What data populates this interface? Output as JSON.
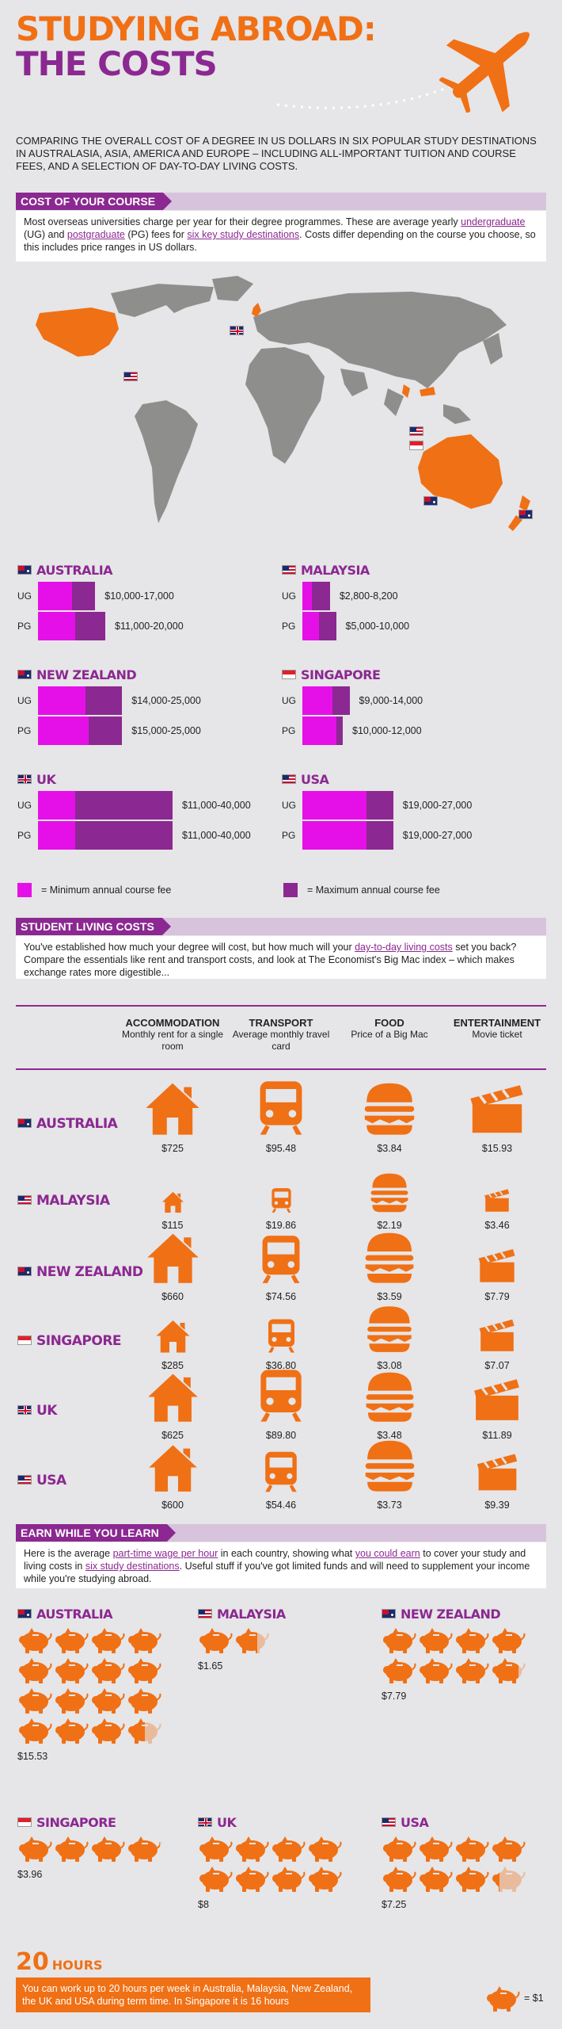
{
  "header": {
    "title_line1": "STUDYING ABROAD:",
    "title_line2": "THE COSTS",
    "intro": "Comparing the overall cost of a degree in US dollars in six popular study destinations in Australasia, Asia, America and Europe – including all-important tuition and course fees, and a selection of day-to-day living costs."
  },
  "course": {
    "heading": "COST OF YOUR COURSE",
    "body_1": "Most overseas universities charge per year for their degree programmes. These are average yearly ",
    "body_ug": "undergraduate",
    "body_2": " (UG) and ",
    "body_pg": "postgraduate",
    "body_3": " (PG) fees for ",
    "body_six": "six key study destinations",
    "body_4": ". Costs differ depending on the course you choose, so this includes price ranges in US dollars.",
    "ug_label": "UG",
    "pg_label": "PG",
    "countries": [
      {
        "name": "AUSTRALIA",
        "ug": "$10,000-17,000",
        "pg": "$11,000-20,000",
        "ug_min": 10000,
        "ug_max": 17000,
        "pg_min": 11000,
        "pg_max": 20000
      },
      {
        "name": "MALAYSIA",
        "ug": "$2,800-8,200",
        "pg": "$5,000-10,000",
        "ug_min": 2800,
        "ug_max": 8200,
        "pg_min": 5000,
        "pg_max": 10000
      },
      {
        "name": "NEW ZEALAND",
        "ug": "$14,000-25,000",
        "pg": "$15,000-25,000",
        "ug_min": 14000,
        "ug_max": 25000,
        "pg_min": 15000,
        "pg_max": 25000
      },
      {
        "name": "SINGAPORE",
        "ug": "$9,000-14,000",
        "pg": "$10,000-12,000",
        "ug_min": 9000,
        "ug_max": 14000,
        "pg_min": 10000,
        "pg_max": 12000
      },
      {
        "name": "UK",
        "ug": "$11,000-40,000",
        "pg": "$11,000-40,000",
        "ug_min": 11000,
        "ug_max": 40000,
        "pg_min": 11000,
        "pg_max": 40000
      },
      {
        "name": "USA",
        "ug": "$19,000-27,000",
        "pg": "$19,000-27,000",
        "ug_min": 19000,
        "ug_max": 27000,
        "pg_min": 19000,
        "pg_max": 27000
      }
    ],
    "legend_min": "= Minimum annual course fee",
    "legend_max": "= Maximum annual course fee"
  },
  "living": {
    "heading": "STUDENT LIVING COSTS",
    "body_1": "You've established how much your degree will cost, but how much will your ",
    "body_hl": "day-to-day living costs",
    "body_2": " set you back? Compare the essentials like rent and transport costs, and look at The Economist's Big Mac index – which makes exchange rates more digestible...",
    "columns": [
      {
        "title": "ACCOMMODATION",
        "sub": "Monthly rent for a single room"
      },
      {
        "title": "TRANSPORT",
        "sub": "Average monthly travel card"
      },
      {
        "title": "FOOD",
        "sub": "Price of a Big Mac"
      },
      {
        "title": "ENTERTAINMENT",
        "sub": "Movie ticket"
      }
    ],
    "rows": [
      {
        "name": "AUSTRALIA",
        "values": [
          "$725",
          "$95.48",
          "$3.84",
          "$15.93"
        ],
        "nums": [
          725,
          95.48,
          3.84,
          15.93
        ]
      },
      {
        "name": "MALAYSIA",
        "values": [
          "$115",
          "$19.86",
          "$2.19",
          "$3.46"
        ],
        "nums": [
          115,
          19.86,
          2.19,
          3.46
        ]
      },
      {
        "name": "NEW ZEALAND",
        "values": [
          "$660",
          "$74.56",
          "$3.59",
          "$7.79"
        ],
        "nums": [
          660,
          74.56,
          3.59,
          7.79
        ]
      },
      {
        "name": "SINGAPORE",
        "values": [
          "$285",
          "$36.80",
          "$3.08",
          "$7.07"
        ],
        "nums": [
          285,
          36.8,
          3.08,
          7.07
        ]
      },
      {
        "name": "UK",
        "values": [
          "$625",
          "$89.80",
          "$3.48",
          "$11.89"
        ],
        "nums": [
          625,
          89.8,
          3.48,
          11.89
        ]
      },
      {
        "name": "USA",
        "values": [
          "$600",
          "$54.46",
          "$3.73",
          "$9.39"
        ],
        "nums": [
          600,
          54.46,
          3.73,
          9.39
        ]
      }
    ]
  },
  "earn": {
    "heading": "EARN WHILE YOU LEARN",
    "body_1": "Here is the average ",
    "body_hl1": "part-time wage per hour",
    "body_2": " in each country, showing what ",
    "body_hl2": "you could earn",
    "body_3": " to cover your study and living costs in ",
    "body_hl3": "six study destinations",
    "body_4": ". Useful stuff if you've got limited funds and will need to supplement your income while you're studying abroad.",
    "countries": [
      {
        "name": "AUSTRALIA",
        "wage": "$15.53",
        "amount": 15.53
      },
      {
        "name": "MALAYSIA",
        "wage": "$1.65",
        "amount": 1.65
      },
      {
        "name": "NEW ZEALAND",
        "wage": "$7.79",
        "amount": 7.79
      },
      {
        "name": "SINGAPORE",
        "wage": "$3.96",
        "amount": 3.96
      },
      {
        "name": "UK",
        "wage": "$8",
        "amount": 8
      },
      {
        "name": "USA",
        "wage": "$7.25",
        "amount": 7.25
      }
    ],
    "hours_num": "20",
    "hours_label": "HOURS",
    "hours_text": "You can work up to 20 hours per week in Australia, Malaysia, New Zealand, the UK and USA during term time. In Singapore it is 16 hours",
    "pig_legend": "= $1"
  },
  "colors": {
    "orange": "#f07015",
    "purple": "#8b2891",
    "magenta": "#e510e8"
  }
}
